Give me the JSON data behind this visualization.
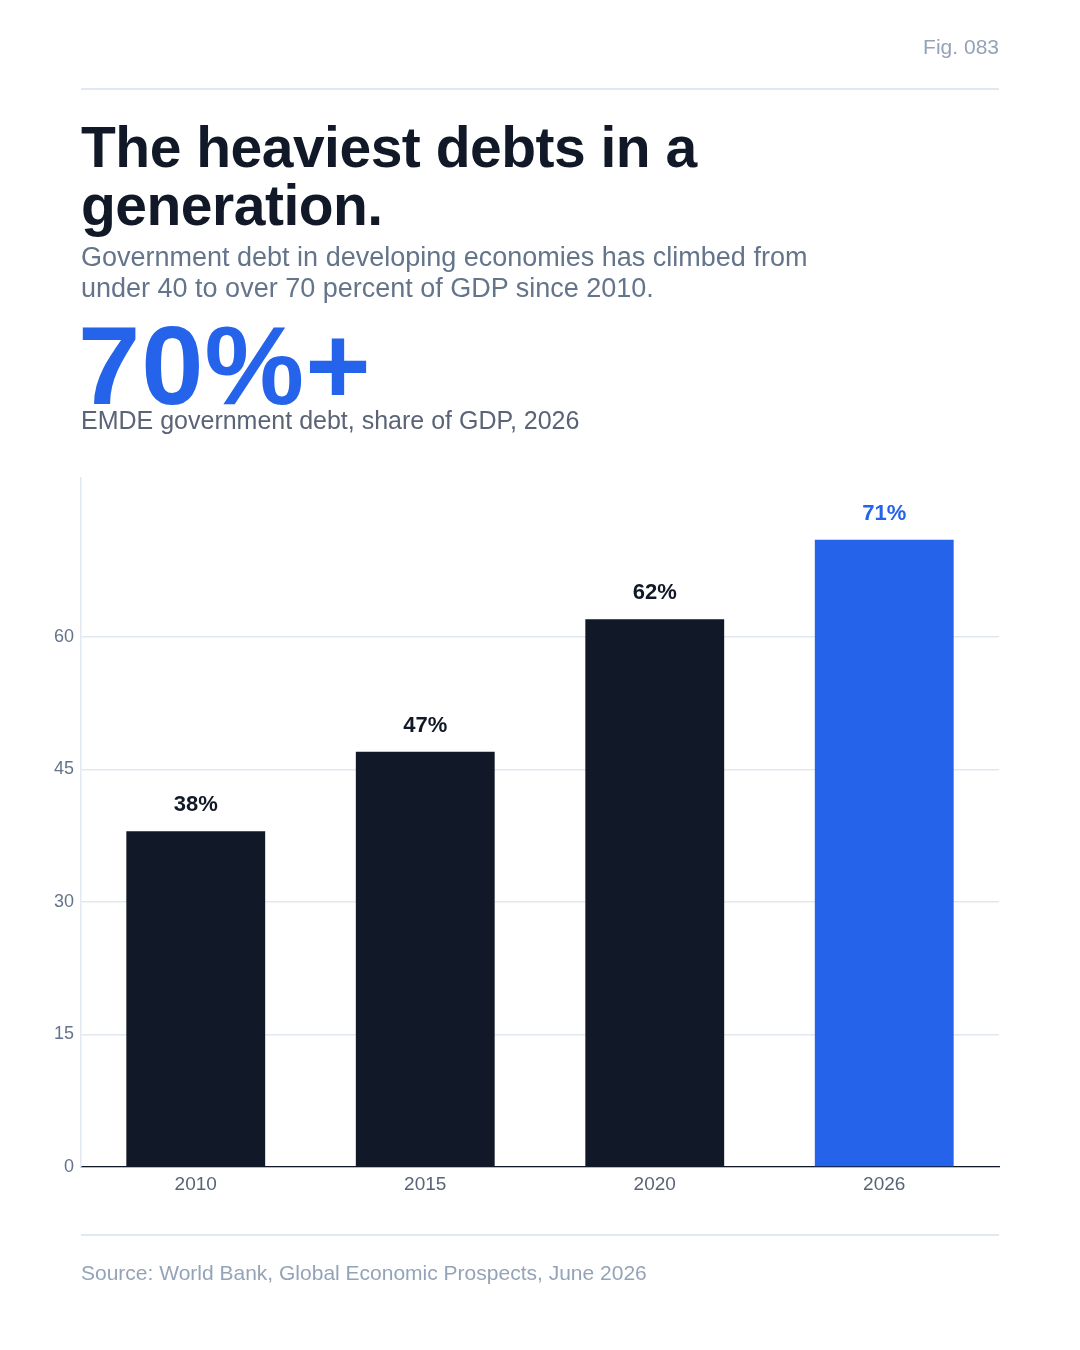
{
  "chart_data": {
    "type": "bar",
    "title": "The heaviest debts in a generation.",
    "subtitle": "Government debt in developing economies has climbed from under 40 to over 70 percent of GDP since 2010.",
    "categories": [
      "2010",
      "2015",
      "2020",
      "2026"
    ],
    "values": [
      38,
      47,
      62,
      71
    ],
    "colors": [
      "#111827",
      "#111827",
      "#111827",
      "#2563eb"
    ],
    "value_labels": [
      "38%",
      "47%",
      "62%",
      "71%"
    ],
    "ylim": [
      0,
      78
    ],
    "yticks": [
      0,
      15,
      30,
      45,
      60
    ],
    "grid": "y",
    "legend": false,
    "annotations": [
      "Fig. 083",
      "70%+",
      "EMDE government debt, share of GDP, 2026",
      "Source: World Bank, Global Economic Prospects, June 2026"
    ]
  }
}
